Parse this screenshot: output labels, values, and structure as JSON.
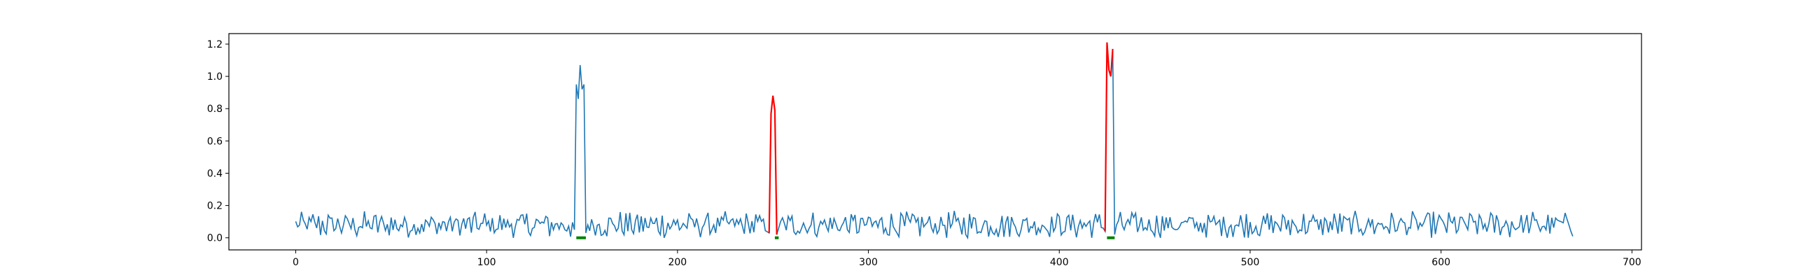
{
  "colors": {
    "series": "#1f77b4",
    "anomaly": "#ff0000",
    "marker": "#008000",
    "axes": "#000000",
    "background": "#ffffff"
  },
  "chart_data": {
    "type": "line",
    "title": "",
    "xlabel": "",
    "ylabel": "",
    "xlim": [
      -35,
      705
    ],
    "ylim": [
      -0.075,
      1.265
    ],
    "grid": false,
    "legend": "none",
    "x_ticks": [
      0,
      100,
      200,
      300,
      400,
      500,
      600,
      700
    ],
    "x_tick_labels": [
      "0",
      "100",
      "200",
      "300",
      "400",
      "500",
      "600",
      "700"
    ],
    "y_ticks": [
      0.0,
      0.2,
      0.4,
      0.6,
      0.8,
      1.0,
      1.2
    ],
    "y_tick_labels": [
      "0.0",
      "0.2",
      "0.4",
      "0.6",
      "0.8",
      "1.0",
      "1.2"
    ],
    "x_range": [
      0,
      669
    ],
    "noise_level": {
      "min": 0.0,
      "max": 0.17,
      "mean": 0.08
    },
    "peaks": [
      {
        "x": [
          146,
          147,
          148,
          149,
          150,
          151,
          152,
          153
        ],
        "y": [
          0.05,
          0.95,
          0.86,
          1.07,
          0.92,
          0.95,
          0.03,
          0.08
        ],
        "color": "series"
      },
      {
        "x": [
          248,
          249,
          250,
          251,
          252,
          253,
          254
        ],
        "y": [
          0.03,
          0.77,
          0.88,
          0.79,
          0.02,
          0.06,
          0.1
        ],
        "color": "anomaly"
      },
      {
        "x": [
          424,
          425,
          426,
          427,
          428,
          429,
          430
        ],
        "y": [
          0.04,
          1.21,
          1.04,
          1.0,
          1.17,
          0.02,
          0.08
        ],
        "color": "anomaly"
      }
    ],
    "markers": [
      {
        "x_start": 147,
        "x_end": 152,
        "y": 0.0
      },
      {
        "x_start": 251,
        "x_end": 253,
        "y": 0.0
      },
      {
        "x_start": 425,
        "x_end": 429,
        "y": 0.0
      }
    ]
  }
}
